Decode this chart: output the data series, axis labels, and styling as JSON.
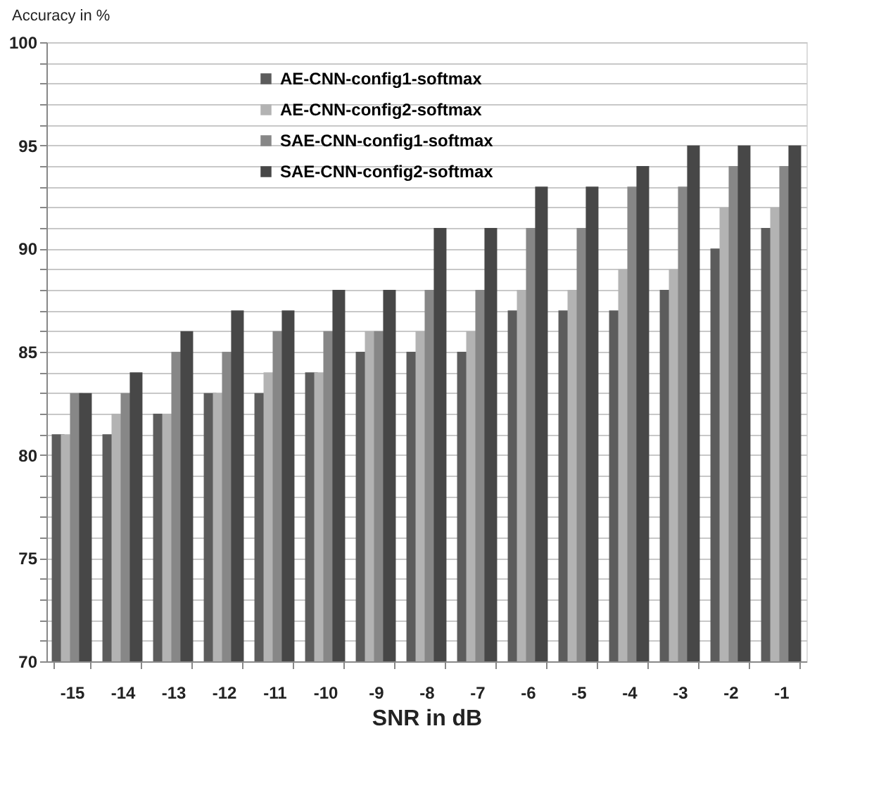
{
  "chart_data": {
    "type": "bar",
    "xlabel": "SNR in dB",
    "ylabel": "Accuracy in %",
    "categories": [
      "-15",
      "-14",
      "-13",
      "-12",
      "-11",
      "-10",
      "-9",
      "-8",
      "-7",
      "-6",
      "-5",
      "-4",
      "-3",
      "-2",
      "-1"
    ],
    "series": [
      {
        "name": "AE-CNN-config1-softmax",
        "color": "#5c5c5c",
        "values": [
          81,
          81,
          82,
          83,
          83,
          84,
          85,
          85,
          85,
          87,
          87,
          87,
          88,
          90,
          91
        ]
      },
      {
        "name": "AE-CNN-config2-softmax",
        "color": "#b3b3b3",
        "values": [
          81,
          82,
          82,
          83,
          84,
          84,
          86,
          86,
          86,
          88,
          88,
          89,
          89,
          92,
          92
        ]
      },
      {
        "name": "SAE-CNN-config1-softmax",
        "color": "#878787",
        "values": [
          83,
          83,
          85,
          85,
          86,
          86,
          86,
          88,
          88,
          91,
          91,
          93,
          93,
          94,
          94
        ]
      },
      {
        "name": "SAE-CNN-config2-softmax",
        "color": "#474747",
        "values": [
          83,
          84,
          86,
          87,
          87,
          88,
          88,
          91,
          91,
          93,
          93,
          94,
          95,
          95,
          95
        ]
      }
    ],
    "ylim": [
      70,
      100
    ],
    "yticks": [
      70,
      {
        "value": 71,
        "label": null
      },
      {
        "value": 72,
        "label": null
      },
      {
        "value": 73,
        "label": null
      },
      {
        "value": 74,
        "label": null
      },
      75,
      {
        "value": 76,
        "label": null
      },
      {
        "value": 77,
        "label": null
      },
      {
        "value": 78,
        "label": null
      },
      {
        "value": 79,
        "label": null
      },
      80,
      {
        "value": 81,
        "label": null
      },
      {
        "value": 82,
        "label": null
      },
      {
        "value": 83,
        "label": null
      },
      {
        "value": 84,
        "label": null
      },
      85,
      {
        "value": 86,
        "label": null
      },
      {
        "value": 87,
        "label": null
      },
      {
        "value": 88,
        "label": null
      },
      {
        "value": 89,
        "label": null
      },
      90,
      {
        "value": 91,
        "label": null
      },
      {
        "value": 92,
        "label": null
      },
      {
        "value": 93,
        "label": null
      },
      {
        "value": 94,
        "label": null
      },
      95,
      {
        "value": 96,
        "label": null
      },
      {
        "value": 97,
        "label": null
      },
      {
        "value": 98,
        "label": null
      },
      {
        "value": 99,
        "label": null
      },
      100
    ],
    "grid": "y",
    "legend": "top left"
  }
}
